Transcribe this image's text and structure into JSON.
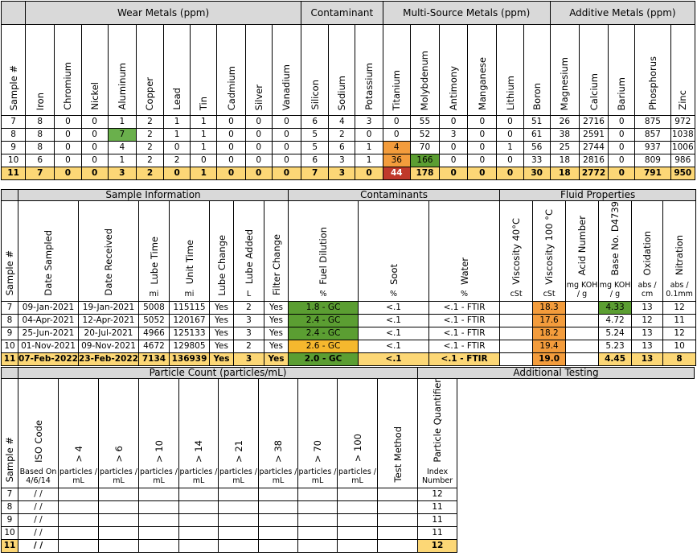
{
  "t1": {
    "groups": [
      "Wear Metals (ppm)",
      "Contaminant",
      "Multi-Source Metals (ppm)",
      "Additive Metals (ppm)"
    ],
    "cols": [
      "Sample #",
      "Iron",
      "Chromium",
      "Nickel",
      "Aluminum",
      "Copper",
      "Lead",
      "Tin",
      "Cadmium",
      "Silver",
      "Vanadium",
      "Silicon",
      "Sodium",
      "Potassium",
      "Titanium",
      "Molybdenum",
      "Antimony",
      "Manganese",
      "Lithium",
      "Boron",
      "Magnesium",
      "Calcium",
      "Barium",
      "Phosphorus",
      "Zinc"
    ],
    "rows": [
      [
        "7",
        "8",
        "0",
        "0",
        "1",
        "2",
        "1",
        "1",
        "0",
        "0",
        "0",
        "6",
        "4",
        "3",
        "0",
        "55",
        "0",
        "0",
        "0",
        "51",
        "26",
        "2716",
        "0",
        "875",
        "972"
      ],
      [
        "8",
        "8",
        "0",
        "0",
        "7",
        "2",
        "1",
        "1",
        "0",
        "0",
        "0",
        "5",
        "2",
        "0",
        "0",
        "52",
        "3",
        "0",
        "0",
        "61",
        "38",
        "2591",
        "0",
        "857",
        "1038"
      ],
      [
        "9",
        "8",
        "0",
        "0",
        "4",
        "2",
        "0",
        "1",
        "0",
        "0",
        "0",
        "5",
        "6",
        "1",
        "4",
        "70",
        "0",
        "0",
        "1",
        "56",
        "25",
        "2744",
        "0",
        "937",
        "1006"
      ],
      [
        "10",
        "6",
        "0",
        "0",
        "1",
        "2",
        "2",
        "0",
        "0",
        "0",
        "0",
        "6",
        "3",
        "1",
        "36",
        "166",
        "0",
        "0",
        "0",
        "33",
        "18",
        "2816",
        "0",
        "809",
        "986"
      ],
      [
        "11",
        "7",
        "0",
        "0",
        "3",
        "2",
        "0",
        "1",
        "0",
        "0",
        "0",
        "7",
        "3",
        "0",
        "44",
        "178",
        "0",
        "0",
        "0",
        "30",
        "18",
        "2772",
        "0",
        "791",
        "950"
      ]
    ]
  },
  "t2": {
    "groups": [
      "Sample Information",
      "Contaminants",
      "Fluid Properties"
    ],
    "cols": [
      "Sample #",
      "Date Sampled",
      "Date  Received",
      "Lube Time",
      "Unit Time",
      "Lube Change",
      "Lube Added",
      "Filter Change",
      "Fuel Dilution",
      "Soot",
      "Water",
      "Viscosity 40°C",
      "Viscosity 100 °C",
      "Acid Number",
      "Base No. D4739",
      "Oxidation",
      "Nitration"
    ],
    "units": [
      "",
      "",
      "",
      "mi",
      "mi",
      "",
      "L",
      "",
      "%",
      "%",
      "%",
      "cSt",
      "cSt",
      "mg KOH / g",
      "mg KOH / g",
      "abs / cm",
      "abs / 0.1mm"
    ],
    "rows": [
      [
        "7",
        "09-Jan-2021",
        "19-Jan-2021",
        "5008",
        "115115",
        "Yes",
        "2",
        "Yes",
        "1.8 - GC",
        "<.1",
        "<.1 - FTIR",
        "",
        "18.3",
        "",
        "4.33",
        "13",
        "12"
      ],
      [
        "8",
        "04-Apr-2021",
        "12-Apr-2021",
        "5052",
        "120167",
        "Yes",
        "3",
        "Yes",
        "2.4 - GC",
        "<.1",
        "<.1 - FTIR",
        "",
        "17.6",
        "",
        "4.72",
        "12",
        "11"
      ],
      [
        "9",
        "25-Jun-2021",
        "20-Jul-2021",
        "4966",
        "125133",
        "Yes",
        "3",
        "Yes",
        "2.4 - GC",
        "<.1",
        "<.1 - FTIR",
        "",
        "18.2",
        "",
        "5.24",
        "13",
        "12"
      ],
      [
        "10",
        "01-Nov-2021",
        "09-Nov-2021",
        "4672",
        "129805",
        "Yes",
        "2",
        "Yes",
        "2.6 - GC",
        "<.1",
        "<.1 - FTIR",
        "",
        "19.4",
        "",
        "5.23",
        "13",
        "10"
      ],
      [
        "11",
        "07-Feb-2022",
        "23-Feb-2022",
        "7134",
        "136939",
        "Yes",
        "3",
        "Yes",
        "2.0 - GC",
        "<.1",
        "<.1 - FTIR",
        "",
        "19.0",
        "",
        "4.45",
        "13",
        "8"
      ]
    ]
  },
  "t3": {
    "groups": [
      "Particle Count (particles/mL)",
      "Additional Testing"
    ],
    "cols": [
      "Sample #",
      "ISO Code",
      "> 4",
      "> 6",
      "> 10",
      "> 14",
      "> 21",
      "> 38",
      "> 70",
      "> 100",
      "Test Method",
      "Particle Quantifier"
    ],
    "units": [
      "",
      "Based On 4/6/14",
      "particles / mL",
      "particles / mL",
      "particles / mL",
      "particles / mL",
      "particles / mL",
      "particles / mL",
      "particles / mL",
      "particles / mL",
      "",
      "Index Number"
    ],
    "rows": [
      [
        "7",
        " /  /",
        "",
        "",
        "",
        "",
        "",
        "",
        "",
        "",
        "",
        "12"
      ],
      [
        "8",
        " /  /",
        "",
        "",
        "",
        "",
        "",
        "",
        "",
        "",
        "",
        "11"
      ],
      [
        "9",
        " /  /",
        "",
        "",
        "",
        "",
        "",
        "",
        "",
        "",
        "",
        "11"
      ],
      [
        "10",
        " /  /",
        "",
        "",
        "",
        "",
        "",
        "",
        "",
        "",
        "",
        "11"
      ],
      [
        "11",
        " /  /",
        "",
        "",
        "",
        "",
        "",
        "",
        "",
        "",
        "",
        "12"
      ]
    ]
  }
}
